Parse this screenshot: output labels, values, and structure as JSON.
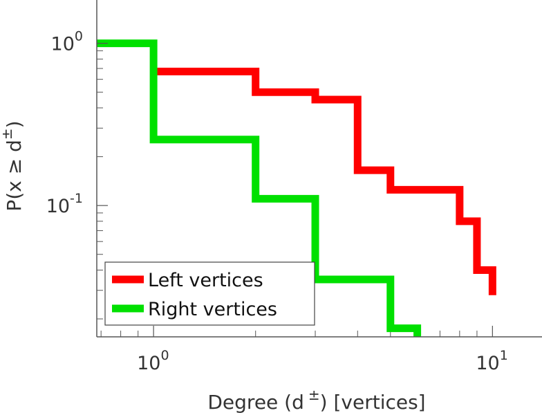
{
  "chart_data": {
    "type": "line",
    "xscale": "log",
    "yscale": "log",
    "xlim": [
      0.68,
      14
    ],
    "ylim": [
      0.0155,
      1.85
    ],
    "x_ticks": [
      {
        "value": 1,
        "base": "10",
        "exp": "0"
      },
      {
        "value": 10,
        "base": "10",
        "exp": "1"
      }
    ],
    "y_ticks": [
      {
        "value": 1,
        "base": "10",
        "exp": "0"
      },
      {
        "value": 0.1,
        "base": "10",
        "exp": "-1"
      }
    ],
    "xlabel": {
      "prefix": "Degree (d",
      "superscript": "±",
      "suffix": ") [vertices]"
    },
    "ylabel": {
      "prefix": "P(x ≥ d",
      "superscript": "±",
      "suffix": ")"
    },
    "legend": {
      "position": "bottom-left"
    },
    "series": [
      {
        "name": "Left vertices",
        "color": "#ff0000",
        "x": [
          1,
          2,
          3,
          4,
          5,
          8,
          9,
          10
        ],
        "y": [
          0.67,
          0.5,
          0.45,
          0.165,
          0.125,
          0.08,
          0.04,
          0.028
        ]
      },
      {
        "name": "Right vertices",
        "color": "#00e000",
        "x": [
          0.68,
          1,
          2,
          3,
          5,
          6
        ],
        "y": [
          1.0,
          0.255,
          0.11,
          0.035,
          0.0175,
          0.0155
        ]
      }
    ]
  }
}
